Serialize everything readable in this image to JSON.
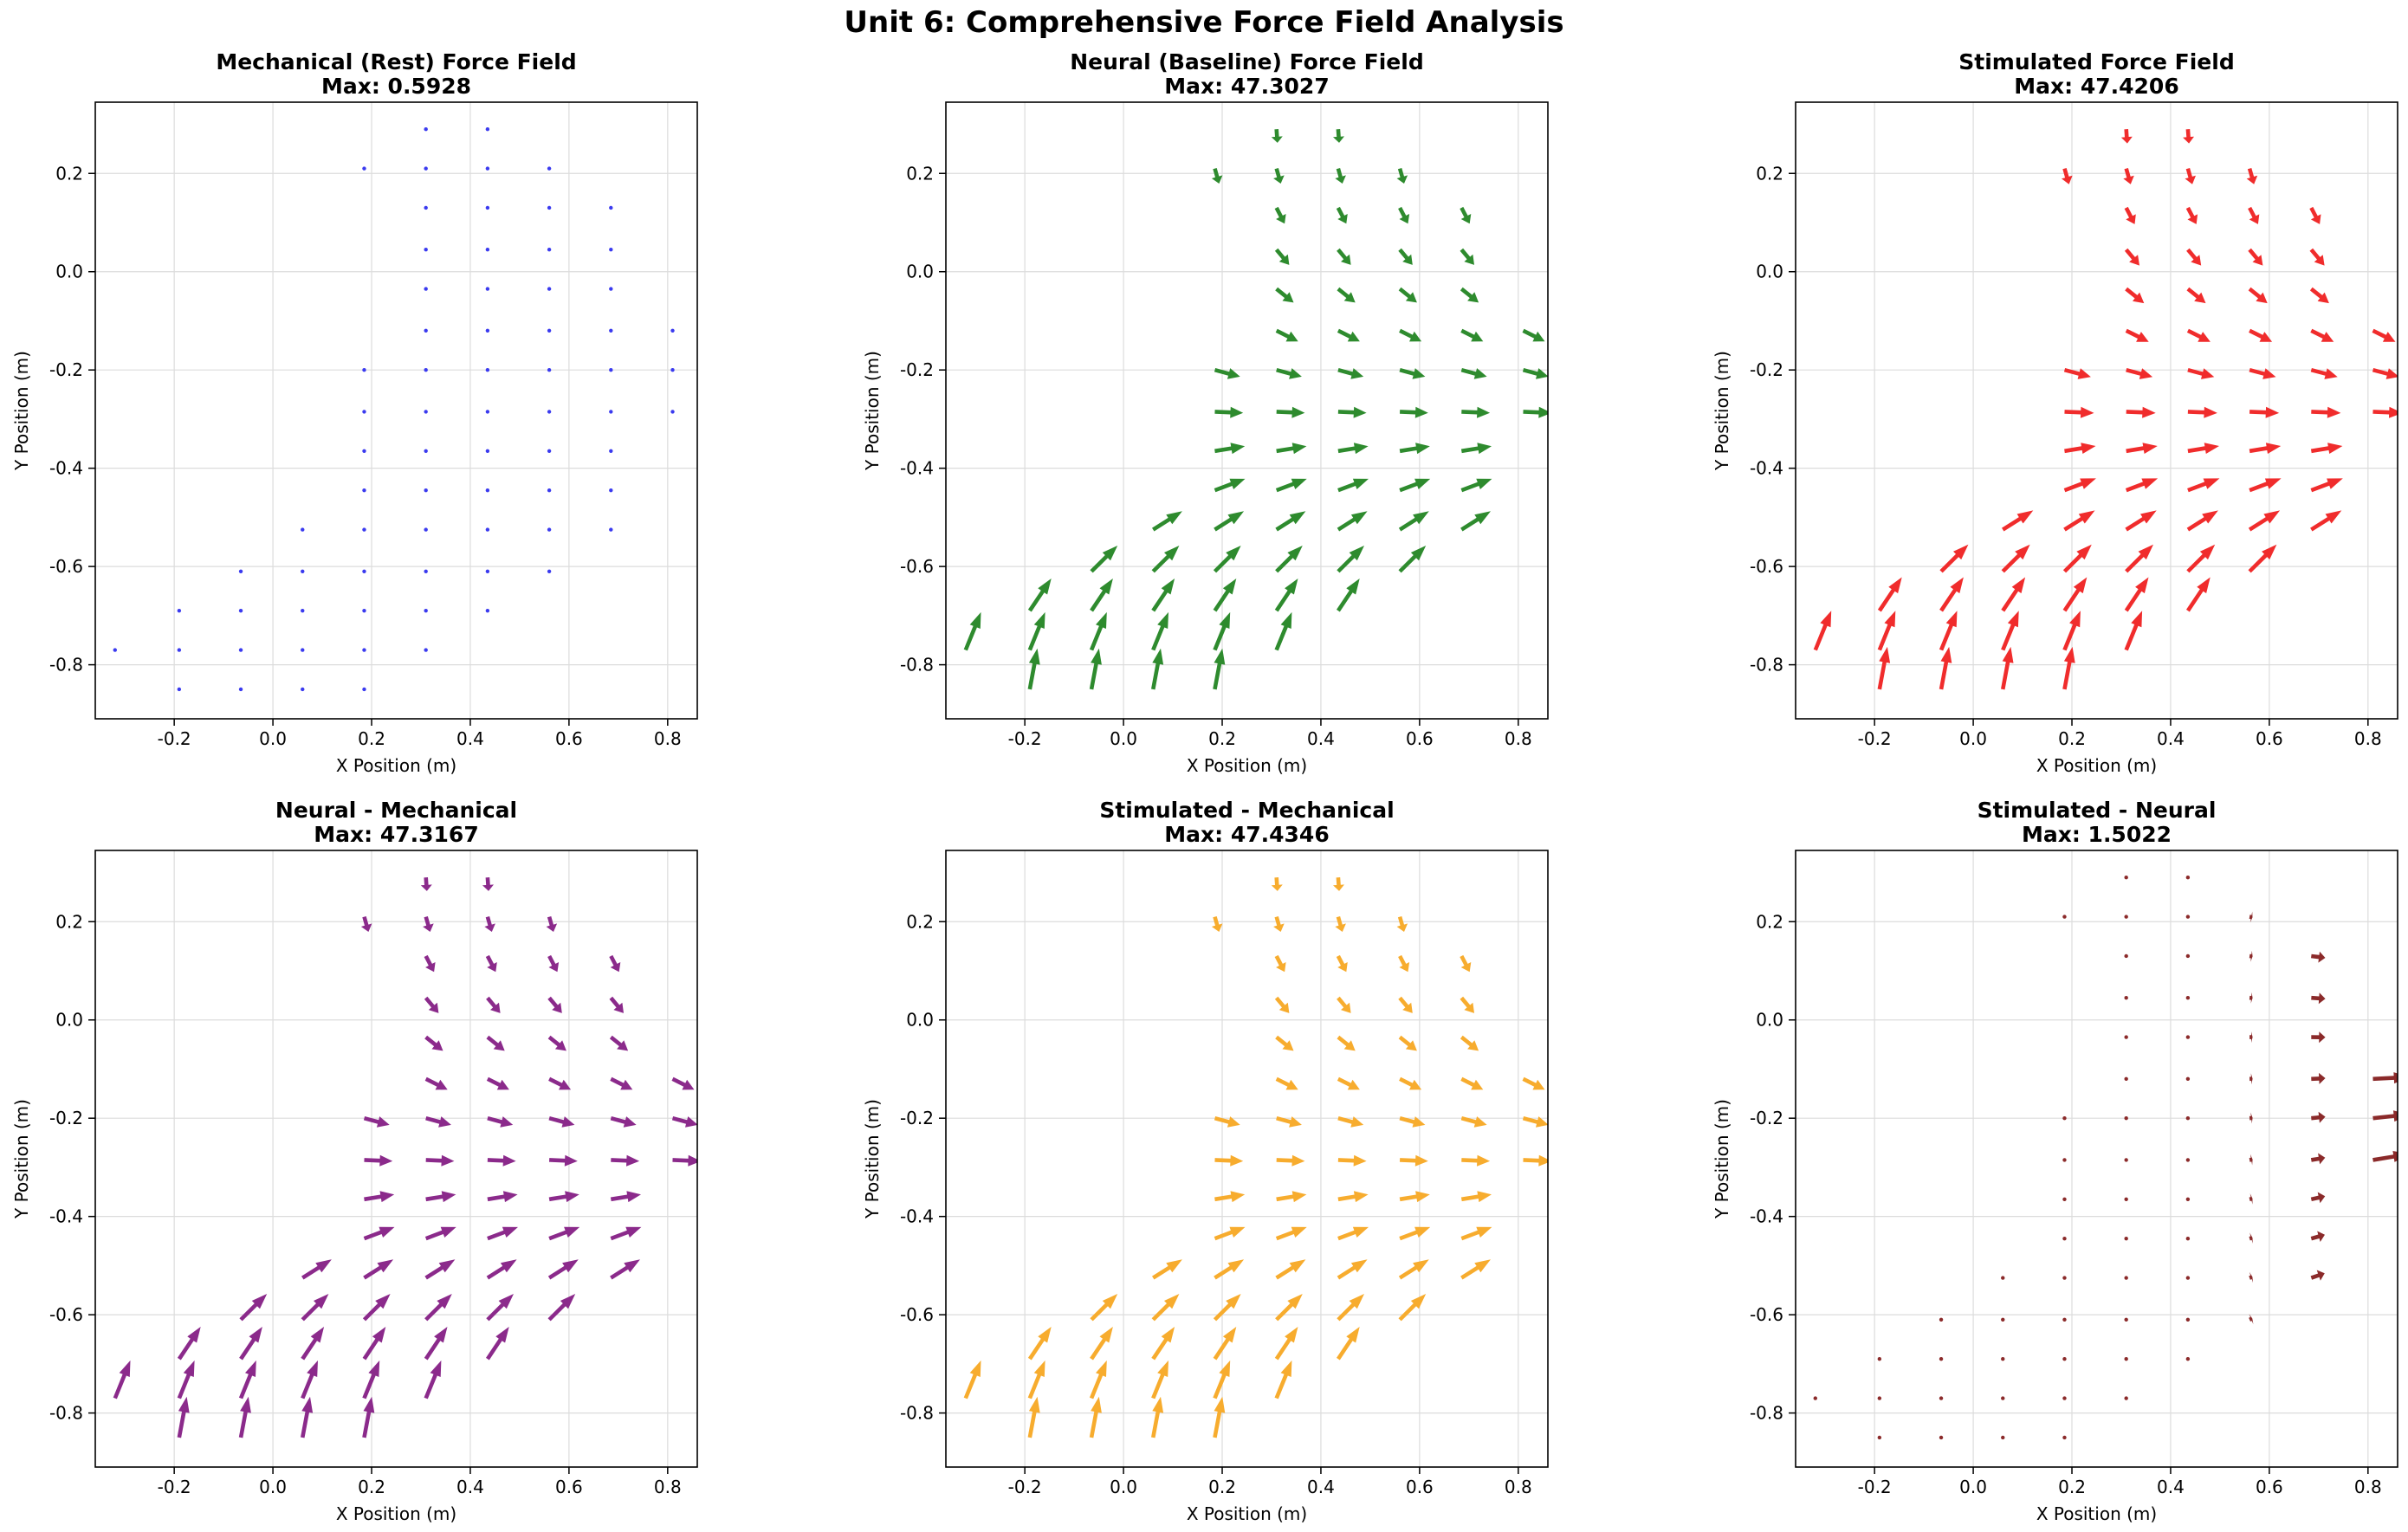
{
  "figure_title": "Unit 6: Comprehensive Force Field Analysis",
  "grid_points": [
    [
      -0.32,
      -0.77
    ],
    [
      -0.19,
      -0.69
    ],
    [
      -0.19,
      -0.77
    ],
    [
      -0.19,
      -0.85
    ],
    [
      -0.065,
      -0.61
    ],
    [
      -0.065,
      -0.69
    ],
    [
      -0.065,
      -0.77
    ],
    [
      -0.065,
      -0.85
    ],
    [
      0.06,
      -0.525
    ],
    [
      0.06,
      -0.61
    ],
    [
      0.06,
      -0.69
    ],
    [
      0.06,
      -0.77
    ],
    [
      0.06,
      -0.85
    ],
    [
      0.185,
      0.21
    ],
    [
      0.185,
      -0.2
    ],
    [
      0.185,
      -0.285
    ],
    [
      0.185,
      -0.365
    ],
    [
      0.185,
      -0.445
    ],
    [
      0.185,
      -0.525
    ],
    [
      0.185,
      -0.61
    ],
    [
      0.185,
      -0.69
    ],
    [
      0.185,
      -0.77
    ],
    [
      0.185,
      -0.85
    ],
    [
      0.31,
      0.29
    ],
    [
      0.31,
      0.21
    ],
    [
      0.31,
      0.13
    ],
    [
      0.31,
      0.045
    ],
    [
      0.31,
      -0.035
    ],
    [
      0.31,
      -0.12
    ],
    [
      0.31,
      -0.2
    ],
    [
      0.31,
      -0.285
    ],
    [
      0.31,
      -0.365
    ],
    [
      0.31,
      -0.445
    ],
    [
      0.31,
      -0.525
    ],
    [
      0.31,
      -0.61
    ],
    [
      0.31,
      -0.69
    ],
    [
      0.31,
      -0.77
    ],
    [
      0.435,
      0.29
    ],
    [
      0.435,
      0.21
    ],
    [
      0.435,
      0.13
    ],
    [
      0.435,
      0.045
    ],
    [
      0.435,
      -0.035
    ],
    [
      0.435,
      -0.12
    ],
    [
      0.435,
      -0.2
    ],
    [
      0.435,
      -0.285
    ],
    [
      0.435,
      -0.365
    ],
    [
      0.435,
      -0.445
    ],
    [
      0.435,
      -0.525
    ],
    [
      0.435,
      -0.61
    ],
    [
      0.435,
      -0.69
    ],
    [
      0.56,
      0.21
    ],
    [
      0.56,
      0.13
    ],
    [
      0.56,
      0.045
    ],
    [
      0.56,
      -0.035
    ],
    [
      0.56,
      -0.12
    ],
    [
      0.56,
      -0.2
    ],
    [
      0.56,
      -0.285
    ],
    [
      0.56,
      -0.365
    ],
    [
      0.56,
      -0.445
    ],
    [
      0.56,
      -0.525
    ],
    [
      0.56,
      -0.61
    ],
    [
      0.685,
      0.13
    ],
    [
      0.685,
      0.045
    ],
    [
      0.685,
      -0.035
    ],
    [
      0.685,
      -0.12
    ],
    [
      0.685,
      -0.2
    ],
    [
      0.685,
      -0.285
    ],
    [
      0.685,
      -0.365
    ],
    [
      0.685,
      -0.445
    ],
    [
      0.685,
      -0.525
    ],
    [
      0.81,
      -0.12
    ],
    [
      0.81,
      -0.2
    ],
    [
      0.81,
      -0.285
    ]
  ],
  "chart_data": [
    {
      "type": "quiver",
      "title": "Mechanical (Rest) Force Field",
      "subtitle": "Max: 0.5928",
      "xlabel": "X Position (m)",
      "ylabel": "Y Position (m)",
      "xlim": [
        -0.36,
        0.86
      ],
      "ylim": [
        -0.91,
        0.345
      ],
      "xticks": [
        "-0.2",
        "0.0",
        "0.2",
        "0.4",
        "0.6",
        "0.8"
      ],
      "yticks": [
        "-0.8",
        "-0.6",
        "-0.4",
        "-0.2",
        "0.0",
        "0.2"
      ],
      "grid": true,
      "color": "#3a3aef",
      "field": "mechanical",
      "vector_scale": 0
    },
    {
      "type": "quiver",
      "title": "Neural (Baseline) Force Field",
      "subtitle": "Max: 47.3027",
      "xlabel": "X Position (m)",
      "ylabel": "Y Position (m)",
      "xlim": [
        -0.36,
        0.86
      ],
      "ylim": [
        -0.91,
        0.345
      ],
      "xticks": [
        "-0.2",
        "0.0",
        "0.2",
        "0.4",
        "0.6",
        "0.8"
      ],
      "yticks": [
        "-0.8",
        "-0.6",
        "-0.4",
        "-0.2",
        "0.0",
        "0.2"
      ],
      "grid": true,
      "color": "#2e8b2e",
      "field": "neural",
      "vector_scale": 1
    },
    {
      "type": "quiver",
      "title": "Stimulated Force Field",
      "subtitle": "Max: 47.4206",
      "xlabel": "X Position (m)",
      "ylabel": "Y Position (m)",
      "xlim": [
        -0.36,
        0.86
      ],
      "ylim": [
        -0.91,
        0.345
      ],
      "xticks": [
        "-0.2",
        "0.0",
        "0.2",
        "0.4",
        "0.6",
        "0.8"
      ],
      "yticks": [
        "-0.8",
        "-0.6",
        "-0.4",
        "-0.2",
        "0.0",
        "0.2"
      ],
      "grid": true,
      "color": "#f02c2c",
      "field": "neural",
      "vector_scale": 1.04
    },
    {
      "type": "quiver",
      "title": "Neural - Mechanical",
      "subtitle": "Max: 47.3167",
      "xlabel": "X Position (m)",
      "ylabel": "Y Position (m)",
      "xlim": [
        -0.36,
        0.86
      ],
      "ylim": [
        -0.91,
        0.345
      ],
      "xticks": [
        "-0.2",
        "0.0",
        "0.2",
        "0.4",
        "0.6",
        "0.8"
      ],
      "yticks": [
        "-0.8",
        "-0.6",
        "-0.4",
        "-0.2",
        "0.0",
        "0.2"
      ],
      "grid": true,
      "color": "#8b2a8b",
      "field": "neural",
      "vector_scale": 1
    },
    {
      "type": "quiver",
      "title": "Stimulated - Mechanical",
      "subtitle": "Max: 47.4346",
      "xlabel": "X Position (m)",
      "ylabel": "Y Position (m)",
      "xlim": [
        -0.36,
        0.86
      ],
      "ylim": [
        -0.91,
        0.345
      ],
      "xticks": [
        "-0.2",
        "0.0",
        "0.2",
        "0.4",
        "0.6",
        "0.8"
      ],
      "yticks": [
        "-0.8",
        "-0.6",
        "-0.4",
        "-0.2",
        "0.0",
        "0.2"
      ],
      "grid": true,
      "color": "#f7ac2e",
      "field": "neural",
      "vector_scale": 1
    },
    {
      "type": "quiver",
      "title": "Stimulated - Neural",
      "subtitle": "Max: 1.5022",
      "xlabel": "X Position (m)",
      "ylabel": "Y Position (m)",
      "xlim": [
        -0.36,
        0.86
      ],
      "ylim": [
        -0.91,
        0.345
      ],
      "xticks": [
        "-0.2",
        "0.0",
        "0.2",
        "0.4",
        "0.6",
        "0.8"
      ],
      "yticks": [
        "-0.8",
        "-0.6",
        "-0.4",
        "-0.2",
        "0.0",
        "0.2"
      ],
      "grid": true,
      "color": "#8b2a2a",
      "field": "difference",
      "vector_scale": 1
    }
  ]
}
